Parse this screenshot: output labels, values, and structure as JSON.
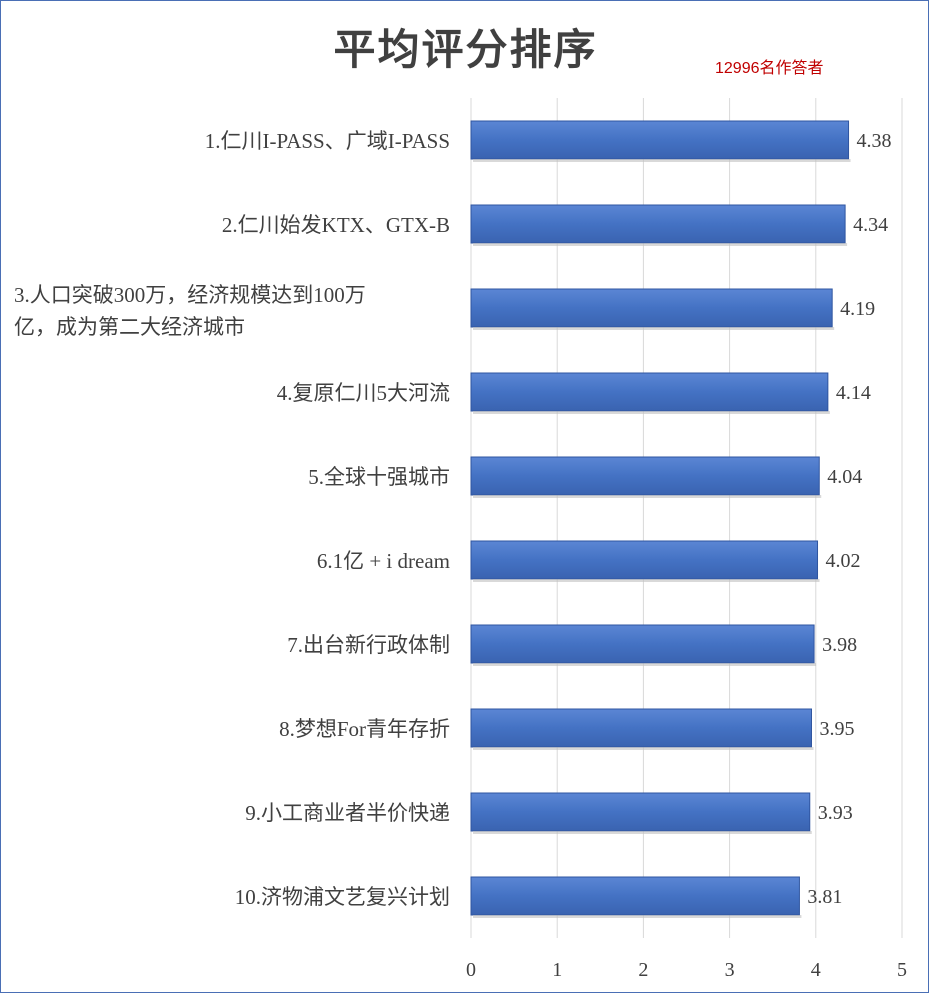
{
  "title": "平均评分排序",
  "subtitle": "12996名作答者",
  "chart_data": {
    "type": "bar",
    "orientation": "horizontal",
    "title": "平均评分排序",
    "subtitle": "12996名作答者",
    "categories": [
      "1.仁川I-PASS、广域I-PASS",
      "2.仁川始发KTX、GTX-B",
      "3.人口突破300万，经济规模达到100万亿，成为第二大经济城市",
      "4.复原仁川5大河流",
      "5.全球十强城市",
      "6.1亿 + i dream",
      "7.出台新行政体制",
      "8.梦想For青年存折",
      "9.小工商业者半价快递",
      "10.济物浦文艺复兴计划"
    ],
    "label_lines": [
      [
        "1.仁川I-PASS、广域I-PASS"
      ],
      [
        "2.仁川始发KTX、GTX-B"
      ],
      [
        "3.人口突破300万，经济规模达到100万",
        "亿，成为第二大经济城市"
      ],
      [
        "4.复原仁川5大河流"
      ],
      [
        "5.全球十强城市"
      ],
      [
        "6.1亿 + i dream"
      ],
      [
        "7.出台新行政体制"
      ],
      [
        "8.梦想For青年存折"
      ],
      [
        "9.小工商业者半价快递"
      ],
      [
        "10.济物浦文艺复兴计划"
      ]
    ],
    "values": [
      4.38,
      4.34,
      4.19,
      4.14,
      4.04,
      4.02,
      3.98,
      3.95,
      3.93,
      3.81
    ],
    "value_labels": [
      "4.38",
      "4.34",
      "4.19",
      "4.14",
      "4.04",
      "4.02",
      "3.98",
      "3.95",
      "3.93",
      "3.81"
    ],
    "xlim": [
      0,
      5
    ],
    "xticks": [
      0,
      1,
      2,
      3,
      4,
      5
    ],
    "grid": true,
    "legend": "none",
    "colors": {
      "bar": "#4472c4",
      "bar_edge": "#2f55a0",
      "grid": "#d9d9d9",
      "subtitle": "#c00000"
    }
  }
}
